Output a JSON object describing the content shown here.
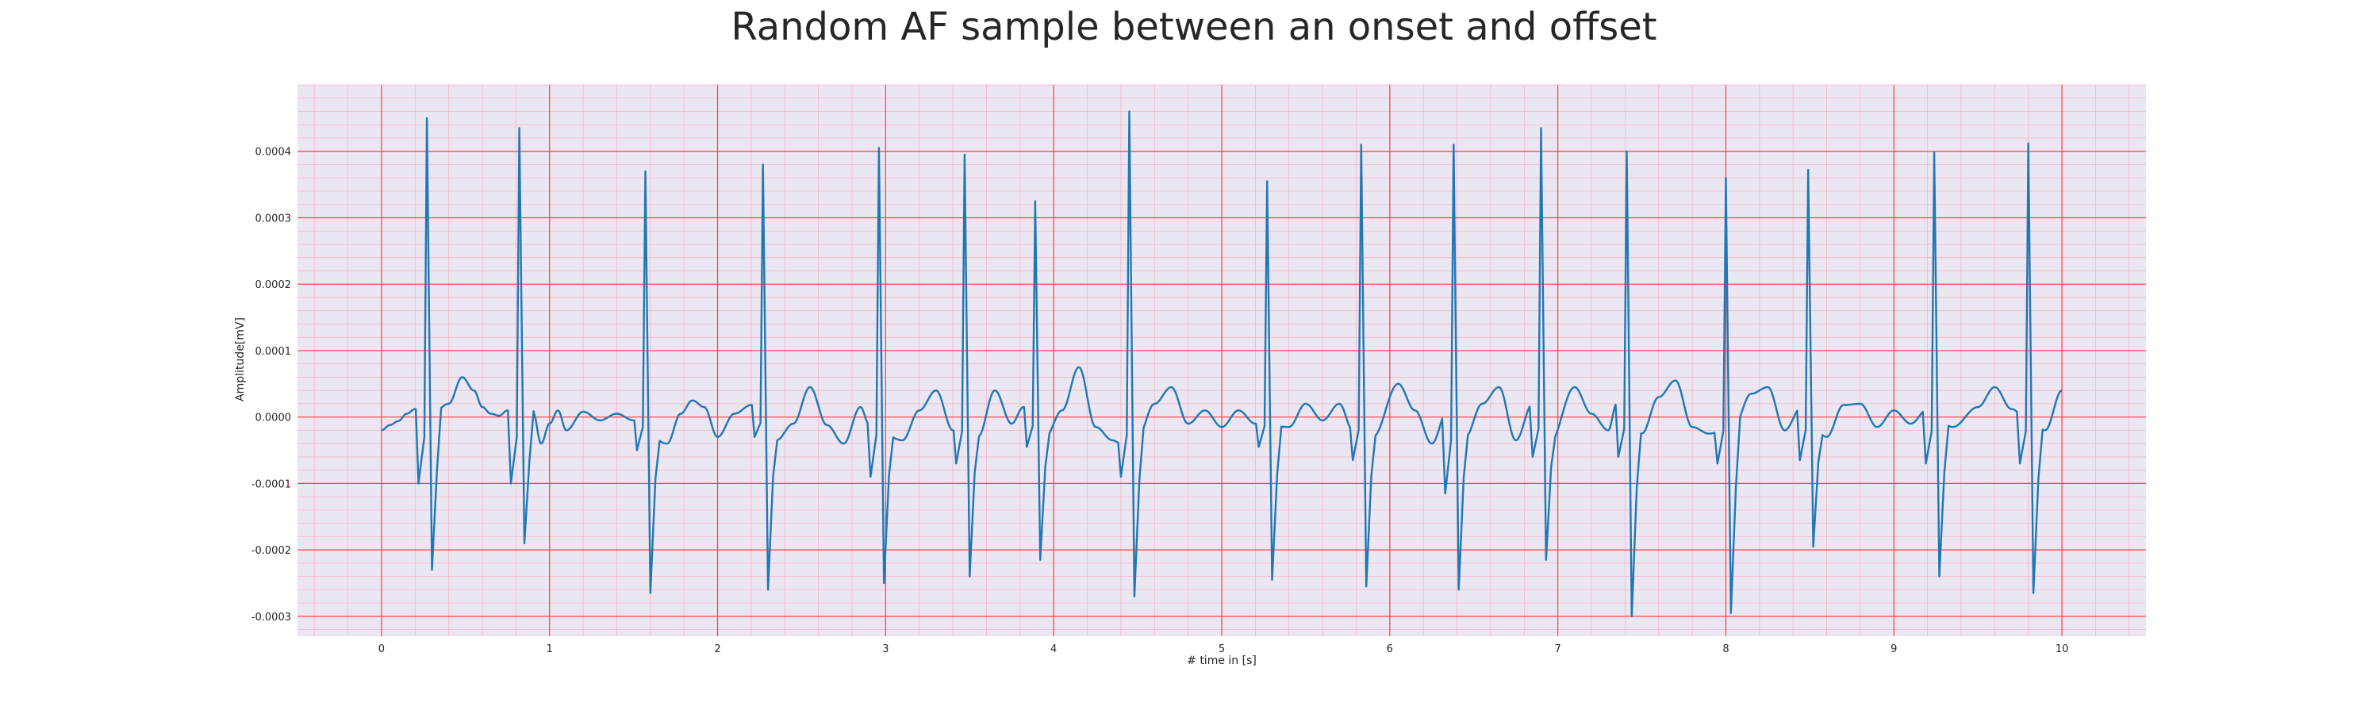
{
  "chart_data": {
    "type": "line",
    "title": "Random AF sample between an onset and offset",
    "xlabel": "# time in [s]",
    "ylabel": "Amplitude[mV]",
    "xlim": [
      -0.5,
      10.5
    ],
    "ylim": [
      -0.00033,
      0.0005
    ],
    "x_ticks": [
      0,
      1,
      2,
      3,
      4,
      5,
      6,
      7,
      8,
      9,
      10
    ],
    "x_tick_labels": [
      "0",
      "1",
      "2",
      "3",
      "4",
      "5",
      "6",
      "7",
      "8",
      "9",
      "10"
    ],
    "y_ticks": [
      -0.0003,
      -0.0002,
      -0.0001,
      0.0,
      0.0001,
      0.0002,
      0.0003,
      0.0004
    ],
    "y_tick_labels": [
      "-0.0003",
      "-0.0002",
      "-0.0001",
      "0.0000",
      "0.0001",
      "0.0002",
      "0.0003",
      "0.0004"
    ],
    "x_minor_step": 0.2,
    "y_minor_step": 2e-05,
    "grid": true,
    "background": "#eae6f2",
    "major_grid_color": "#ff4040",
    "minor_grid_color": "#f5b6c4",
    "series": [
      {
        "color": "#1f77b4",
        "x_start": 0.0,
        "x_end": 10.0,
        "baseline": [
          [
            0.0,
            -2e-05
          ],
          [
            0.05,
            -1.2e-05
          ],
          [
            0.1,
            -6e-06
          ],
          [
            0.15,
            5e-06
          ],
          [
            0.2,
            1.2e-05
          ],
          [
            0.3,
            5e-06
          ],
          [
            0.4,
            2e-05
          ],
          [
            0.48,
            6e-05
          ],
          [
            0.55,
            4e-05
          ],
          [
            0.6,
            1.5e-05
          ],
          [
            0.65,
            5e-06
          ],
          [
            0.7,
            2e-06
          ],
          [
            0.75,
            1e-05
          ],
          [
            0.9,
            1e-05
          ],
          [
            0.95,
            -4e-05
          ],
          [
            1.0,
            -1e-05
          ],
          [
            1.05,
            1e-05
          ],
          [
            1.1,
            -2e-05
          ],
          [
            1.2,
            8e-06
          ],
          [
            1.3,
            -5e-06
          ],
          [
            1.4,
            5e-06
          ],
          [
            1.5,
            -5e-06
          ],
          [
            1.7,
            -4e-05
          ],
          [
            1.78,
            5e-06
          ],
          [
            1.85,
            2.5e-05
          ],
          [
            1.92,
            1.5e-05
          ],
          [
            2.0,
            -3e-05
          ],
          [
            2.1,
            5e-06
          ],
          [
            2.2,
            1.8e-05
          ],
          [
            2.35,
            -3.5e-05
          ],
          [
            2.45,
            -1e-05
          ],
          [
            2.55,
            4.5e-05
          ],
          [
            2.65,
            -1.2e-05
          ],
          [
            2.75,
            -4e-05
          ],
          [
            2.85,
            1.5e-05
          ],
          [
            2.9,
            -1e-05
          ],
          [
            3.1,
            -3.5e-05
          ],
          [
            3.2,
            1e-05
          ],
          [
            3.3,
            4e-05
          ],
          [
            3.4,
            -2e-05
          ],
          [
            3.55,
            -3e-05
          ],
          [
            3.65,
            4e-05
          ],
          [
            3.75,
            -1e-05
          ],
          [
            3.82,
            1.5e-05
          ],
          [
            3.95,
            -3e-05
          ],
          [
            4.05,
            1e-05
          ],
          [
            4.15,
            7.5e-05
          ],
          [
            4.25,
            -1.5e-05
          ],
          [
            4.35,
            -3.5e-05
          ],
          [
            4.4,
            -4e-05
          ],
          [
            4.5,
            -3e-05
          ],
          [
            4.6,
            2e-05
          ],
          [
            4.7,
            4.5e-05
          ],
          [
            4.8,
            -1e-05
          ],
          [
            4.9,
            1e-05
          ],
          [
            5.0,
            -1.5e-05
          ],
          [
            5.1,
            1e-05
          ],
          [
            5.2,
            -1e-05
          ],
          [
            5.4,
            -1.5e-05
          ],
          [
            5.5,
            2e-05
          ],
          [
            5.6,
            -5e-06
          ],
          [
            5.7,
            2e-05
          ],
          [
            5.78,
            -2e-05
          ],
          [
            5.9,
            -3e-05
          ],
          [
            6.05,
            5e-05
          ],
          [
            6.15,
            1e-05
          ],
          [
            6.25,
            -4e-05
          ],
          [
            6.35,
            1.5e-05
          ],
          [
            6.45,
            -3e-05
          ],
          [
            6.55,
            2e-05
          ],
          [
            6.65,
            4.5e-05
          ],
          [
            6.75,
            -3.5e-05
          ],
          [
            6.85,
            2e-05
          ],
          [
            6.95,
            -4e-05
          ],
          [
            7.1,
            4.5e-05
          ],
          [
            7.2,
            5e-06
          ],
          [
            7.3,
            -2e-05
          ],
          [
            7.35,
            2e-05
          ],
          [
            7.5,
            -2.5e-05
          ],
          [
            7.6,
            3e-05
          ],
          [
            7.7,
            5.5e-05
          ],
          [
            7.8,
            -1.5e-05
          ],
          [
            7.9,
            -2.5e-05
          ],
          [
            8.05,
            -1.2e-05
          ],
          [
            8.15,
            3.5e-05
          ],
          [
            8.25,
            4.5e-05
          ],
          [
            8.35,
            -2e-05
          ],
          [
            8.45,
            1.5e-05
          ],
          [
            8.6,
            -3e-05
          ],
          [
            8.7,
            1.8e-05
          ],
          [
            8.8,
            2e-05
          ],
          [
            8.9,
            -1.5e-05
          ],
          [
            9.0,
            1e-05
          ],
          [
            9.1,
            -1e-05
          ],
          [
            9.2,
            1.2e-05
          ],
          [
            9.35,
            -1.5e-05
          ],
          [
            9.5,
            1.5e-05
          ],
          [
            9.6,
            4.5e-05
          ],
          [
            9.7,
            1.2e-05
          ],
          [
            9.8,
            -5e-06
          ],
          [
            9.9,
            -2e-05
          ],
          [
            10.0,
            4e-05
          ]
        ],
        "beats": [
          {
            "t": 0.27,
            "pre": -0.0001,
            "peak": 0.00045,
            "trough": -0.00023
          },
          {
            "t": 0.82,
            "pre": -0.0001,
            "peak": 0.000435,
            "trough": -0.00019
          },
          {
            "t": 1.57,
            "pre": -5e-05,
            "peak": 0.00037,
            "trough": -0.000265
          },
          {
            "t": 2.27,
            "pre": -3e-05,
            "peak": 0.00038,
            "trough": -0.00026
          },
          {
            "t": 2.96,
            "pre": -9e-05,
            "peak": 0.000405,
            "trough": -0.00025
          },
          {
            "t": 3.47,
            "pre": -7e-05,
            "peak": 0.000395,
            "trough": -0.00024
          },
          {
            "t": 3.89,
            "pre": -4.5e-05,
            "peak": 0.000325,
            "trough": -0.000215
          },
          {
            "t": 4.45,
            "pre": -9e-05,
            "peak": 0.00046,
            "trough": -0.00027
          },
          {
            "t": 5.27,
            "pre": -4.5e-05,
            "peak": 0.000355,
            "trough": -0.000245
          },
          {
            "t": 5.83,
            "pre": -6.5e-05,
            "peak": 0.00041,
            "trough": -0.000255
          },
          {
            "t": 6.38,
            "pre": -0.000115,
            "peak": 0.00041,
            "trough": -0.00026
          },
          {
            "t": 6.9,
            "pre": -6e-05,
            "peak": 0.000435,
            "trough": -0.000215
          },
          {
            "t": 7.41,
            "pre": -6e-05,
            "peak": 0.0004,
            "trough": -0.0003
          },
          {
            "t": 8.0,
            "pre": -7e-05,
            "peak": 0.00036,
            "trough": -0.000295
          },
          {
            "t": 8.49,
            "pre": -6.5e-05,
            "peak": 0.000372,
            "trough": -0.000195
          },
          {
            "t": 9.24,
            "pre": -7e-05,
            "peak": 0.000398,
            "trough": -0.00024
          },
          {
            "t": 9.8,
            "pre": -7e-05,
            "peak": 0.000412,
            "trough": -0.000265
          }
        ]
      }
    ]
  }
}
